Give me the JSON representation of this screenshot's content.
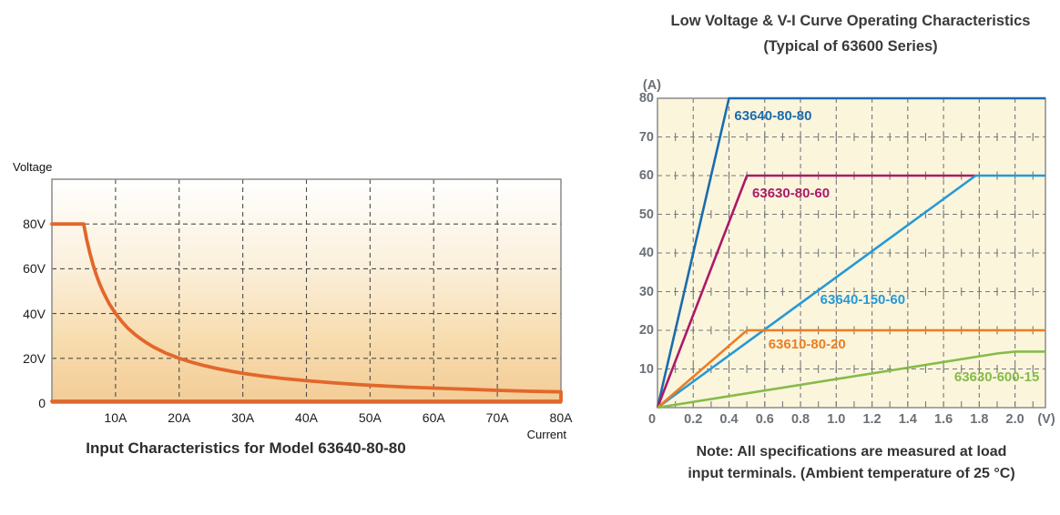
{
  "chart_data": [
    {
      "id": "left",
      "type": "area",
      "title": "Input Characteristics for Model 63640-80-80",
      "xlabel": "Current",
      "ylabel": "Voltage",
      "xlim": [
        0,
        80
      ],
      "ylim": [
        0,
        100
      ],
      "x_tick_values": [
        10,
        20,
        30,
        40,
        50,
        60,
        70,
        80
      ],
      "x_tick_labels": [
        "10A",
        "20A",
        "30A",
        "40A",
        "50A",
        "60A",
        "70A",
        "80A"
      ],
      "y_tick_values": [
        80,
        60,
        40,
        20,
        0
      ],
      "y_tick_labels": [
        "80V",
        "60V",
        "40V",
        "20V",
        "0"
      ],
      "x_gridlines": [
        10,
        20,
        30,
        40,
        50,
        60,
        70
      ],
      "y_gridlines": [
        20,
        40,
        60,
        80
      ],
      "grid_color": "#4d4d4d",
      "border_color": "#8a8a8a",
      "bg_gradient": [
        "#FFFFFF",
        "#FBF0DC",
        "#F7DCAE",
        "#F3CC96"
      ],
      "series": [
        {
          "name": "operating-boundary-63640-80-80",
          "color": "#E2672B",
          "stroke_width": 3.8,
          "points": [
            [
              0,
              80
            ],
            [
              5,
              80
            ],
            [
              5.5,
              72.7
            ],
            [
              6,
              66.7
            ],
            [
              6.5,
              61.5
            ],
            [
              7,
              57.1
            ],
            [
              7.5,
              53.3
            ],
            [
              8,
              50
            ],
            [
              9,
              44.4
            ],
            [
              10,
              40
            ],
            [
              11,
              36.4
            ],
            [
              12,
              33.3
            ],
            [
              13,
              30.8
            ],
            [
              14,
              28.6
            ],
            [
              15,
              26.7
            ],
            [
              16,
              25
            ],
            [
              18,
              22.2
            ],
            [
              20,
              20
            ],
            [
              22,
              18.2
            ],
            [
              24,
              16.7
            ],
            [
              26,
              15.4
            ],
            [
              28,
              14.3
            ],
            [
              30,
              13.3
            ],
            [
              33,
              12.1
            ],
            [
              36,
              11.1
            ],
            [
              40,
              10
            ],
            [
              44,
              9.1
            ],
            [
              48,
              8.3
            ],
            [
              52,
              7.7
            ],
            [
              56,
              7.1
            ],
            [
              60,
              6.7
            ],
            [
              65,
              6.2
            ],
            [
              70,
              5.7
            ],
            [
              75,
              5.3
            ],
            [
              80,
              5
            ],
            [
              80,
              0.8
            ],
            [
              0,
              0.8
            ]
          ]
        }
      ]
    },
    {
      "id": "right",
      "type": "line",
      "title_line1": "Low Voltage & V-I Curve Operating Characteristics",
      "title_line2": "(Typical of 63600 Series)",
      "xlabel": "(V)",
      "ylabel": "(A)",
      "xlim": [
        0,
        2.17
      ],
      "ylim": [
        0,
        80
      ],
      "x_tick_values": [
        0,
        0.2,
        0.4,
        0.6,
        0.8,
        1.0,
        1.2,
        1.4,
        1.6,
        1.8,
        2.0
      ],
      "x_tick_labels": [
        "0",
        "0.2",
        "0.4",
        "0.6",
        "0.8",
        "1.0",
        "1.2",
        "1.4",
        "1.6",
        "1.8",
        "2.0"
      ],
      "y_tick_values": [
        80,
        70,
        60,
        50,
        40,
        30,
        20,
        10
      ],
      "y_tick_labels": [
        "80",
        "70",
        "60",
        "50",
        "40",
        "30",
        "20",
        "10"
      ],
      "x_gridline_step": 0.2,
      "minor_tick_step": 0.1,
      "y_gridlines": [
        10,
        20,
        30,
        40,
        50,
        60,
        70
      ],
      "bg_color": "#FBF5DC",
      "grid_color": "#76797c",
      "border_color": "#8a8a8a",
      "series": [
        {
          "name": "63640-80-80",
          "color": "#1B6CAE",
          "stroke_width": 2.6,
          "points": [
            [
              0,
              0
            ],
            [
              0.4,
              80
            ],
            [
              2.17,
              80
            ]
          ],
          "label_pos": [
            0.43,
            75.5
          ]
        },
        {
          "name": "63630-80-60",
          "color": "#AB1A68",
          "stroke_width": 2.6,
          "points": [
            [
              0,
              0
            ],
            [
              0.5,
              60
            ],
            [
              1.78,
              60
            ]
          ],
          "label_pos": [
            0.53,
            55.5
          ]
        },
        {
          "name": "63640-150-60",
          "color": "#2699D6",
          "stroke_width": 2.6,
          "points": [
            [
              0,
              0
            ],
            [
              1.78,
              60
            ],
            [
              2.17,
              60
            ]
          ],
          "label_pos": [
            0.91,
            28
          ]
        },
        {
          "name": "63610-80-20",
          "color": "#ED7D23",
          "stroke_width": 2.6,
          "points": [
            [
              0,
              0
            ],
            [
              0.5,
              20
            ],
            [
              2.17,
              20
            ]
          ],
          "label_pos": [
            0.62,
            16.5
          ]
        },
        {
          "name": "63630-600-15",
          "color": "#85BB49",
          "stroke_width": 2.6,
          "points": [
            [
              0,
              0
            ],
            [
              1.9,
              14
            ],
            [
              2.0,
              14.5
            ],
            [
              2.17,
              14.5
            ]
          ],
          "label_pos": [
            1.66,
            8
          ]
        }
      ],
      "note_line1": "Note: All specifications are measured at load",
      "note_line2": "input terminals. (Ambient temperature of 25 °C)"
    }
  ]
}
